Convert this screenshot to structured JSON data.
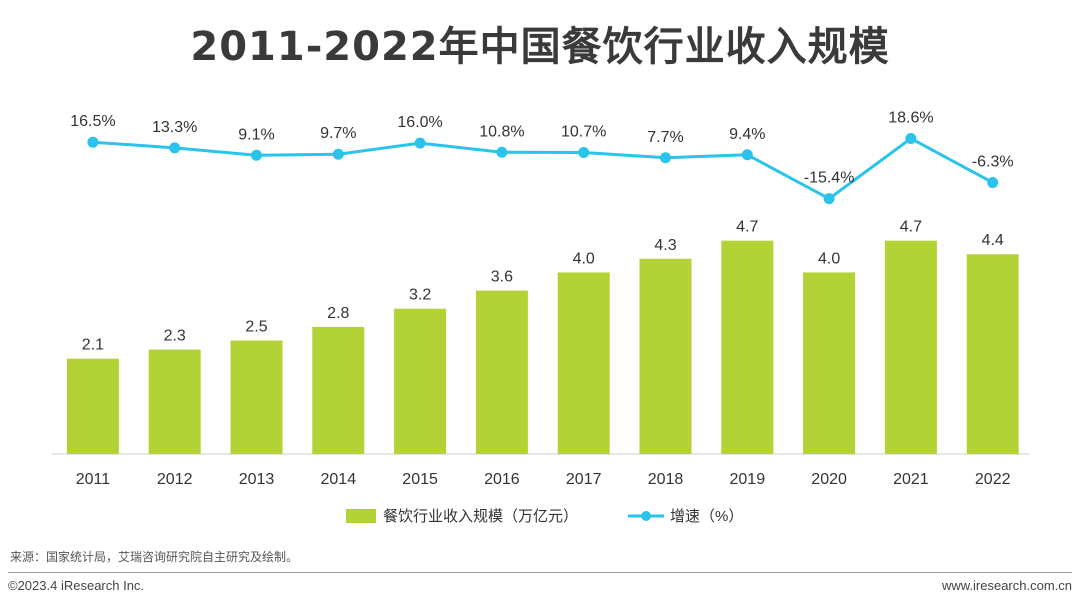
{
  "title": "2011-2022年中国餐饮行业收入规模",
  "chart_data": {
    "type": "bar",
    "categories": [
      "2011",
      "2012",
      "2013",
      "2014",
      "2015",
      "2016",
      "2017",
      "2018",
      "2019",
      "2020",
      "2021",
      "2022"
    ],
    "series": [
      {
        "name": "餐饮行业收入规模（万亿元）",
        "type": "bar",
        "color": "#b2d235",
        "values": [
          2.1,
          2.3,
          2.5,
          2.8,
          3.2,
          3.6,
          4.0,
          4.3,
          4.7,
          4.0,
          4.7,
          4.4
        ],
        "labels": [
          "2.1",
          "2.3",
          "2.5",
          "2.8",
          "3.2",
          "3.6",
          "4.0",
          "4.3",
          "4.7",
          "4.0",
          "4.7",
          "4.4"
        ]
      },
      {
        "name": "增速（%）",
        "type": "line",
        "color": "#29c3eb",
        "values": [
          16.5,
          13.3,
          9.1,
          9.7,
          16.0,
          10.8,
          10.7,
          7.7,
          9.4,
          -15.4,
          18.6,
          -6.3
        ],
        "labels": [
          "16.5%",
          "13.3%",
          "9.1%",
          "9.7%",
          "16.0%",
          "10.8%",
          "10.7%",
          "7.7%",
          "9.4%",
          "-15.4%",
          "18.6%",
          "-6.3%"
        ]
      }
    ],
    "legend_position": "bottom",
    "grid": false
  },
  "source": "来源：国家统计局，艾瑞咨询研究院自主研究及绘制。",
  "footer": {
    "copyright": "©2023.4 iResearch Inc.",
    "website": "www.iresearch.com.cn"
  }
}
